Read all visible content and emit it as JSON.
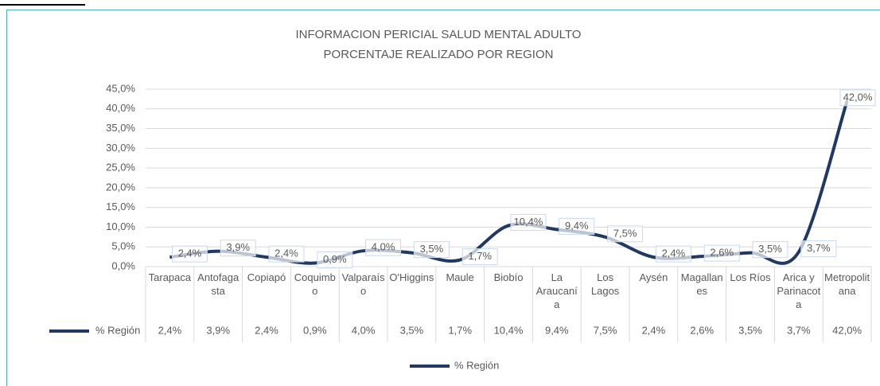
{
  "chart_data": {
    "type": "line",
    "title": "INFORMACION PERICIAL SALUD MENTAL ADULTO",
    "subtitle": "PORCENTAJE REALIZADO POR REGION",
    "categories": [
      "Tarapaca",
      "Antofagasta",
      "Copiapó",
      "Coquimbo",
      "Valparaíso",
      "O'Higgins",
      "Maule",
      "Biobío",
      "La Araucanía",
      "Los Lagos",
      "Aysén",
      "Magallanes",
      "Los Ríos",
      "Arica y Parinacota",
      "Metropolitana"
    ],
    "series": [
      {
        "name": "% Región",
        "color": "#1f3864",
        "values": [
          2.4,
          3.9,
          2.4,
          0.9,
          4.0,
          3.5,
          1.7,
          10.4,
          9.4,
          7.5,
          2.4,
          2.6,
          3.5,
          3.7,
          42.0
        ],
        "value_labels": [
          "2,4%",
          "3,9%",
          "2,4%",
          "0,9%",
          "4,0%",
          "3,5%",
          "1,7%",
          "10,4%",
          "9,4%",
          "7,5%",
          "2,4%",
          "2,6%",
          "3,5%",
          "3,7%",
          "42,0%"
        ]
      }
    ],
    "ylim": [
      0,
      45
    ],
    "yticks": [
      {
        "value": 0,
        "label": "0,0%"
      },
      {
        "value": 5,
        "label": "5,0%"
      },
      {
        "value": 10,
        "label": "10,0%"
      },
      {
        "value": 15,
        "label": "15,0%"
      },
      {
        "value": 20,
        "label": "20,0%"
      },
      {
        "value": 25,
        "label": "25,0%"
      },
      {
        "value": 30,
        "label": "30,0%"
      },
      {
        "value": 35,
        "label": "35,0%"
      },
      {
        "value": 40,
        "label": "40,0%"
      },
      {
        "value": 45,
        "label": "45,0%"
      }
    ],
    "grid": true,
    "legend": "bottom",
    "smooth": true,
    "data_table": true
  }
}
